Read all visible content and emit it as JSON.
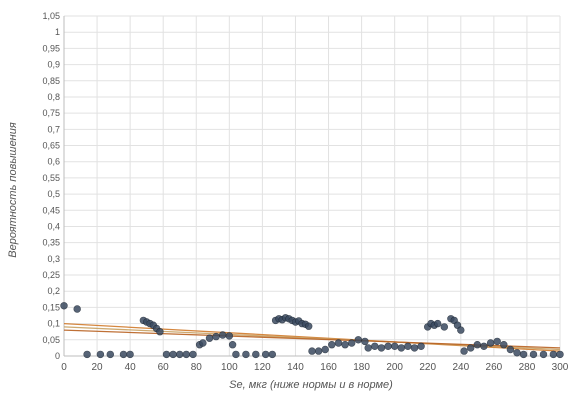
{
  "chart_data": {
    "type": "scatter",
    "title": "",
    "xlabel": "Se, мкг (ниже нормы и в норме)",
    "ylabel": "Вероятность повышения",
    "xlim": [
      0,
      300
    ],
    "ylim": [
      0,
      1.05
    ],
    "x_ticks": [
      "0",
      "20",
      "40",
      "60",
      "80",
      "100",
      "120",
      "140",
      "160",
      "180",
      "200",
      "220",
      "240",
      "260",
      "280",
      "300"
    ],
    "y_ticks": [
      "0",
      "0,05",
      "0,1",
      "0,15",
      "0,2",
      "0,25",
      "0,3",
      "0,35",
      "0,4",
      "0,45",
      "0,5",
      "0,55",
      "0,6",
      "0,65",
      "0,7",
      "0,75",
      "0,8",
      "0,85",
      "0,9",
      "0,95",
      "1",
      "1,05"
    ],
    "grid": true,
    "colors": {
      "points": "#3a4a60",
      "trend_lines": [
        "#d07a2a",
        "#c8a060",
        "#b86020"
      ]
    },
    "series": [
      {
        "kind": "scatter",
        "points": [
          [
            0,
            0.155
          ],
          [
            8,
            0.145
          ],
          [
            14,
            0.005
          ],
          [
            22,
            0.005
          ],
          [
            28,
            0.005
          ],
          [
            36,
            0.005
          ],
          [
            40,
            0.005
          ],
          [
            48,
            0.11
          ],
          [
            50,
            0.105
          ],
          [
            52,
            0.1
          ],
          [
            54,
            0.095
          ],
          [
            56,
            0.085
          ],
          [
            58,
            0.075
          ],
          [
            62,
            0.005
          ],
          [
            66,
            0.005
          ],
          [
            70,
            0.005
          ],
          [
            74,
            0.005
          ],
          [
            78,
            0.005
          ],
          [
            82,
            0.035
          ],
          [
            84,
            0.04
          ],
          [
            88,
            0.055
          ],
          [
            92,
            0.06
          ],
          [
            96,
            0.065
          ],
          [
            100,
            0.062
          ],
          [
            102,
            0.035
          ],
          [
            104,
            0.005
          ],
          [
            110,
            0.005
          ],
          [
            116,
            0.005
          ],
          [
            122,
            0.005
          ],
          [
            126,
            0.005
          ],
          [
            128,
            0.11
          ],
          [
            130,
            0.115
          ],
          [
            132,
            0.112
          ],
          [
            134,
            0.118
          ],
          [
            136,
            0.115
          ],
          [
            138,
            0.11
          ],
          [
            140,
            0.105
          ],
          [
            142,
            0.108
          ],
          [
            144,
            0.1
          ],
          [
            146,
            0.098
          ],
          [
            148,
            0.092
          ],
          [
            150,
            0.015
          ],
          [
            154,
            0.015
          ],
          [
            158,
            0.02
          ],
          [
            162,
            0.035
          ],
          [
            166,
            0.04
          ],
          [
            170,
            0.035
          ],
          [
            174,
            0.04
          ],
          [
            178,
            0.05
          ],
          [
            182,
            0.045
          ],
          [
            184,
            0.025
          ],
          [
            188,
            0.03
          ],
          [
            192,
            0.025
          ],
          [
            196,
            0.03
          ],
          [
            200,
            0.03
          ],
          [
            204,
            0.025
          ],
          [
            208,
            0.03
          ],
          [
            212,
            0.025
          ],
          [
            216,
            0.03
          ],
          [
            220,
            0.09
          ],
          [
            222,
            0.1
          ],
          [
            224,
            0.095
          ],
          [
            226,
            0.1
          ],
          [
            230,
            0.09
          ],
          [
            234,
            0.115
          ],
          [
            236,
            0.11
          ],
          [
            238,
            0.095
          ],
          [
            240,
            0.08
          ],
          [
            242,
            0.015
          ],
          [
            246,
            0.025
          ],
          [
            250,
            0.035
          ],
          [
            254,
            0.03
          ],
          [
            258,
            0.04
          ],
          [
            262,
            0.045
          ],
          [
            266,
            0.035
          ],
          [
            270,
            0.02
          ],
          [
            274,
            0.01
          ],
          [
            278,
            0.005
          ],
          [
            284,
            0.005
          ],
          [
            290,
            0.005
          ],
          [
            296,
            0.005
          ],
          [
            300,
            0.005
          ]
        ]
      },
      {
        "kind": "line",
        "points": [
          [
            0,
            0.1
          ],
          [
            300,
            0.015
          ]
        ]
      },
      {
        "kind": "line",
        "points": [
          [
            0,
            0.09
          ],
          [
            300,
            0.02
          ]
        ]
      },
      {
        "kind": "line",
        "points": [
          [
            0,
            0.08
          ],
          [
            300,
            0.025
          ]
        ]
      }
    ]
  }
}
